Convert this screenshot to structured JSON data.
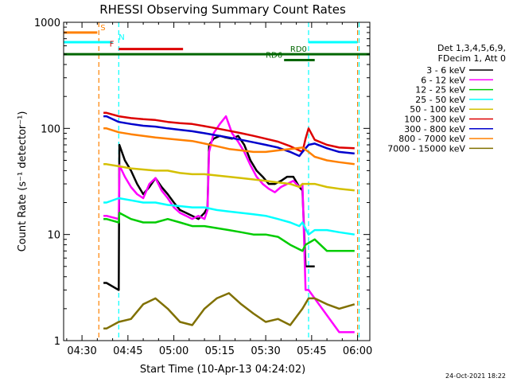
{
  "chart_data": {
    "type": "line",
    "title": "RHESSI Observing Summary Count Rates",
    "xlabel": "Start Time (10-Apr-13 04:24:02)",
    "ylabel": "Count Rate (s⁻¹ detector⁻¹)",
    "x_unit": "minutes after 04:24:02",
    "xlim": [
      0,
      100
    ],
    "ylim": [
      1,
      1000
    ],
    "y_scale": "log",
    "x_ticks": [
      {
        "x": 6,
        "label": "04:30"
      },
      {
        "x": 21,
        "label": "04:45"
      },
      {
        "x": 36,
        "label": "05:00"
      },
      {
        "x": 51,
        "label": "05:15"
      },
      {
        "x": 66,
        "label": "05:30"
      },
      {
        "x": 81,
        "label": "05:45"
      },
      {
        "x": 96,
        "label": "06:00"
      }
    ],
    "y_ticks": [
      {
        "y": 1,
        "label": "1"
      },
      {
        "y": 10,
        "label": "10"
      },
      {
        "y": 100,
        "label": "100"
      },
      {
        "y": 1000,
        "label": "1000"
      }
    ],
    "legend_header": [
      "Det 1,3,4,5,6,9,",
      "FDecim 1, Att 0"
    ],
    "series": [
      {
        "name": "3 - 6 keV",
        "color": "#000000",
        "points": [
          [
            13,
            3.5
          ],
          [
            14,
            3.5
          ],
          [
            18,
            3
          ],
          [
            18.2,
            70
          ],
          [
            20,
            50
          ],
          [
            22,
            40
          ],
          [
            24,
            30
          ],
          [
            26,
            24
          ],
          [
            28,
            28
          ],
          [
            30,
            34
          ],
          [
            32,
            28
          ],
          [
            34,
            24
          ],
          [
            36,
            20
          ],
          [
            38,
            17
          ],
          [
            40,
            16
          ],
          [
            42,
            15
          ],
          [
            44,
            14
          ],
          [
            46,
            16
          ],
          [
            47,
            18
          ],
          [
            47.5,
            70
          ],
          [
            49,
            80
          ],
          [
            51,
            85
          ],
          [
            53,
            82
          ],
          [
            55,
            80
          ],
          [
            57,
            85
          ],
          [
            59,
            70
          ],
          [
            61,
            50
          ],
          [
            63,
            40
          ],
          [
            65,
            35
          ],
          [
            67,
            30
          ],
          [
            69,
            30
          ],
          [
            71,
            32
          ],
          [
            73,
            35
          ],
          [
            75,
            35
          ],
          [
            77,
            28
          ],
          [
            78,
            26
          ],
          [
            79,
            5
          ],
          [
            81,
            5
          ],
          [
            82,
            5
          ]
        ]
      },
      {
        "name": "6 - 12 keV",
        "color": "#ff00ff",
        "points": [
          [
            13,
            15
          ],
          [
            14,
            15
          ],
          [
            18,
            14
          ],
          [
            18.2,
            45
          ],
          [
            20,
            35
          ],
          [
            22,
            28
          ],
          [
            24,
            24
          ],
          [
            26,
            22
          ],
          [
            28,
            30
          ],
          [
            30,
            34
          ],
          [
            32,
            26
          ],
          [
            34,
            22
          ],
          [
            36,
            18
          ],
          [
            38,
            16
          ],
          [
            40,
            15
          ],
          [
            42,
            14
          ],
          [
            44,
            15
          ],
          [
            46,
            14
          ],
          [
            47,
            17
          ],
          [
            47.5,
            60
          ],
          [
            49,
            90
          ],
          [
            51,
            110
          ],
          [
            53,
            130
          ],
          [
            55,
            90
          ],
          [
            57,
            75
          ],
          [
            59,
            60
          ],
          [
            61,
            45
          ],
          [
            63,
            35
          ],
          [
            65,
            30
          ],
          [
            67,
            27
          ],
          [
            69,
            25
          ],
          [
            71,
            28
          ],
          [
            73,
            30
          ],
          [
            75,
            32
          ],
          [
            77,
            28
          ],
          [
            78,
            30
          ],
          [
            79,
            3
          ],
          [
            80,
            3
          ],
          [
            90,
            1.2
          ],
          [
            95,
            1.2
          ]
        ]
      },
      {
        "name": "12 - 25 keV",
        "color": "#00cc00",
        "points": [
          [
            13,
            14
          ],
          [
            14,
            14
          ],
          [
            18,
            13
          ],
          [
            18.2,
            16
          ],
          [
            22,
            14
          ],
          [
            26,
            13
          ],
          [
            30,
            13
          ],
          [
            34,
            14
          ],
          [
            38,
            13
          ],
          [
            42,
            12
          ],
          [
            46,
            12
          ],
          [
            50,
            11.5
          ],
          [
            54,
            11
          ],
          [
            58,
            10.5
          ],
          [
            62,
            10
          ],
          [
            66,
            10
          ],
          [
            70,
            9.5
          ],
          [
            74,
            8
          ],
          [
            78,
            7
          ],
          [
            79,
            8
          ],
          [
            82,
            9
          ],
          [
            86,
            7
          ],
          [
            90,
            7
          ],
          [
            95,
            7
          ]
        ]
      },
      {
        "name": "25 - 50 keV",
        "color": "#00ffff",
        "points": [
          [
            13,
            20
          ],
          [
            14,
            20
          ],
          [
            18,
            22
          ],
          [
            22,
            21
          ],
          [
            26,
            20
          ],
          [
            30,
            20
          ],
          [
            34,
            19
          ],
          [
            38,
            18.5
          ],
          [
            42,
            18
          ],
          [
            46,
            18
          ],
          [
            50,
            17
          ],
          [
            54,
            16.5
          ],
          [
            58,
            16
          ],
          [
            62,
            15.5
          ],
          [
            66,
            15
          ],
          [
            70,
            14
          ],
          [
            74,
            13
          ],
          [
            77,
            12
          ],
          [
            78,
            13
          ],
          [
            80,
            10
          ],
          [
            82,
            11
          ],
          [
            86,
            11
          ],
          [
            90,
            10.5
          ],
          [
            95,
            10
          ]
        ]
      },
      {
        "name": "50 - 100 keV",
        "color": "#d4c000",
        "points": [
          [
            13,
            46
          ],
          [
            14,
            46
          ],
          [
            18,
            44
          ],
          [
            22,
            42
          ],
          [
            26,
            41
          ],
          [
            30,
            40
          ],
          [
            34,
            40
          ],
          [
            38,
            38
          ],
          [
            42,
            37
          ],
          [
            46,
            37
          ],
          [
            50,
            36
          ],
          [
            54,
            35
          ],
          [
            58,
            34
          ],
          [
            62,
            33
          ],
          [
            66,
            32
          ],
          [
            70,
            31
          ],
          [
            74,
            30
          ],
          [
            77,
            28
          ],
          [
            78,
            30
          ],
          [
            80,
            30
          ],
          [
            82,
            30
          ],
          [
            86,
            28
          ],
          [
            90,
            27
          ],
          [
            95,
            26
          ]
        ]
      },
      {
        "name": "100 - 300 keV",
        "color": "#dd0000",
        "points": [
          [
            13,
            140
          ],
          [
            14,
            140
          ],
          [
            18,
            130
          ],
          [
            22,
            125
          ],
          [
            26,
            122
          ],
          [
            30,
            120
          ],
          [
            34,
            115
          ],
          [
            38,
            112
          ],
          [
            42,
            110
          ],
          [
            46,
            105
          ],
          [
            50,
            100
          ],
          [
            54,
            95
          ],
          [
            58,
            90
          ],
          [
            62,
            85
          ],
          [
            66,
            80
          ],
          [
            70,
            75
          ],
          [
            74,
            68
          ],
          [
            78,
            60
          ],
          [
            79,
            80
          ],
          [
            80,
            100
          ],
          [
            82,
            78
          ],
          [
            86,
            70
          ],
          [
            90,
            66
          ],
          [
            95,
            65
          ]
        ]
      },
      {
        "name": "300 - 800 keV",
        "color": "#0000cc",
        "points": [
          [
            13,
            130
          ],
          [
            14,
            130
          ],
          [
            18,
            115
          ],
          [
            22,
            110
          ],
          [
            26,
            106
          ],
          [
            30,
            104
          ],
          [
            34,
            100
          ],
          [
            38,
            97
          ],
          [
            42,
            94
          ],
          [
            46,
            90
          ],
          [
            50,
            86
          ],
          [
            54,
            82
          ],
          [
            58,
            78
          ],
          [
            62,
            74
          ],
          [
            66,
            70
          ],
          [
            70,
            66
          ],
          [
            74,
            60
          ],
          [
            77,
            55
          ],
          [
            78,
            60
          ],
          [
            80,
            70
          ],
          [
            82,
            72
          ],
          [
            86,
            65
          ],
          [
            90,
            60
          ],
          [
            95,
            58
          ]
        ]
      },
      {
        "name": "800 - 7000 keV",
        "color": "#ff8000",
        "points": [
          [
            13,
            100
          ],
          [
            14,
            100
          ],
          [
            18,
            92
          ],
          [
            22,
            88
          ],
          [
            26,
            85
          ],
          [
            30,
            82
          ],
          [
            34,
            80
          ],
          [
            38,
            78
          ],
          [
            42,
            76
          ],
          [
            46,
            72
          ],
          [
            50,
            68
          ],
          [
            54,
            64
          ],
          [
            58,
            62
          ],
          [
            62,
            60
          ],
          [
            66,
            60
          ],
          [
            70,
            62
          ],
          [
            74,
            64
          ],
          [
            78,
            66
          ],
          [
            80,
            60
          ],
          [
            82,
            54
          ],
          [
            86,
            50
          ],
          [
            90,
            48
          ],
          [
            95,
            46
          ]
        ]
      },
      {
        "name": "7000 - 15000 keV",
        "color": "#807000",
        "points": [
          [
            13,
            1.3
          ],
          [
            14,
            1.3
          ],
          [
            18,
            1.5
          ],
          [
            22,
            1.6
          ],
          [
            26,
            2.2
          ],
          [
            30,
            2.5
          ],
          [
            34,
            2.0
          ],
          [
            38,
            1.5
          ],
          [
            42,
            1.4
          ],
          [
            46,
            2.0
          ],
          [
            50,
            2.5
          ],
          [
            54,
            2.8
          ],
          [
            58,
            2.2
          ],
          [
            62,
            1.8
          ],
          [
            66,
            1.5
          ],
          [
            70,
            1.6
          ],
          [
            74,
            1.4
          ],
          [
            78,
            2.0
          ],
          [
            80,
            2.5
          ],
          [
            82,
            2.5
          ],
          [
            86,
            2.2
          ],
          [
            90,
            2.0
          ],
          [
            95,
            2.2
          ]
        ]
      }
    ],
    "flags": [
      {
        "label": "S",
        "color": "#ff8000",
        "y": 800,
        "segments": [
          [
            0,
            11
          ]
        ],
        "label_x": 12
      },
      {
        "label": "N",
        "color": "#00ffff",
        "y": 650,
        "segments": [
          [
            0,
            16
          ],
          [
            80,
            96
          ]
        ],
        "label_x": 18
      },
      {
        "label": "F",
        "color": "#dd0000",
        "y": 560,
        "segments": [
          [
            18,
            39
          ]
        ],
        "label_x": 15
      },
      {
        "label": "RD0",
        "color": "#006600",
        "y": 500,
        "segments": [
          [
            0,
            100
          ]
        ],
        "label_x": 74
      },
      {
        "label": "RD6",
        "color": "#006600",
        "y": 440,
        "segments": [
          [
            72,
            82
          ]
        ],
        "label_x": 66
      }
    ],
    "vlines": [
      {
        "x": 11.5,
        "color": "#ff8000"
      },
      {
        "x": 18,
        "color": "#00ffff"
      },
      {
        "x": 80,
        "color": "#00ffff"
      },
      {
        "x": 96.5,
        "color": "#00ffff"
      },
      {
        "x": 96,
        "color": "#ff8000"
      }
    ]
  },
  "footer_date": "24-Oct-2021 18:22"
}
